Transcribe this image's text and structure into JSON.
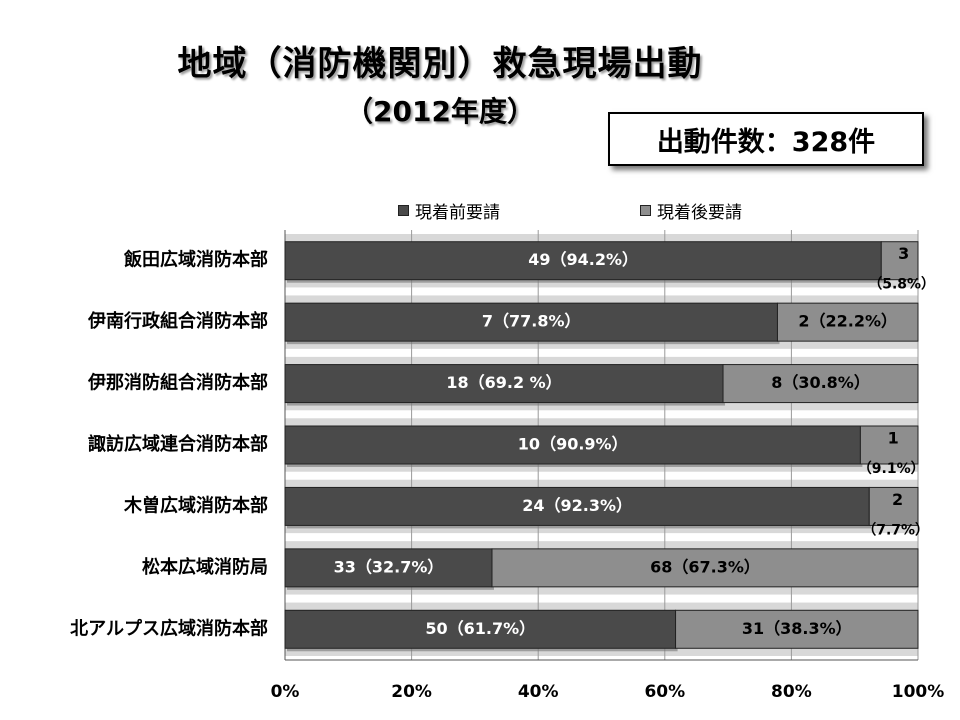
{
  "title": "地域（消防機関別）救急現場出動",
  "subtitle": "（2012年度）",
  "count_label": "出動件数：328件",
  "colors": {
    "before": "#4a4a4a",
    "after": "#8e8e8e",
    "band": "#d8d8d8"
  },
  "chart_data": {
    "type": "bar",
    "orientation": "horizontal",
    "stacked": "percent",
    "categories": [
      "飯田広域消防本部",
      "伊南行政組合消防本部",
      "伊那消防組合消防本部",
      "諏訪広域連合消防本部",
      "木曽広域消防本部",
      "松本広域消防局",
      "北アルプス広域消防本部"
    ],
    "series": [
      {
        "name": "現着前要請",
        "values": [
          49,
          7,
          18,
          10,
          24,
          33,
          50
        ],
        "labels": [
          "49（94.2%）",
          "7（77.8%）",
          "18（69.2 %）",
          "10（90.9%）",
          "24（92.3%）",
          "33（32.7%）",
          "50（61.7%）"
        ],
        "percent": [
          94.2,
          77.8,
          69.2,
          90.9,
          92.3,
          32.7,
          61.7
        ]
      },
      {
        "name": "現着後要請",
        "values": [
          3,
          2,
          8,
          1,
          2,
          68,
          31
        ],
        "labels": [
          "3",
          "2（22.2%）",
          "8（30.8%）",
          "1",
          "2",
          "68（67.3%）",
          "31（38.3%）"
        ],
        "sublabels": [
          "（5.8%）",
          "",
          "",
          "（9.1%）",
          "（7.7%）",
          "",
          ""
        ],
        "percent": [
          5.8,
          22.2,
          30.8,
          9.1,
          7.7,
          67.3,
          38.3
        ]
      }
    ],
    "xticks": [
      "0%",
      "20%",
      "40%",
      "60%",
      "80%",
      "100%"
    ],
    "xlim": [
      0,
      100
    ],
    "grid": true,
    "legend_position": "top"
  }
}
